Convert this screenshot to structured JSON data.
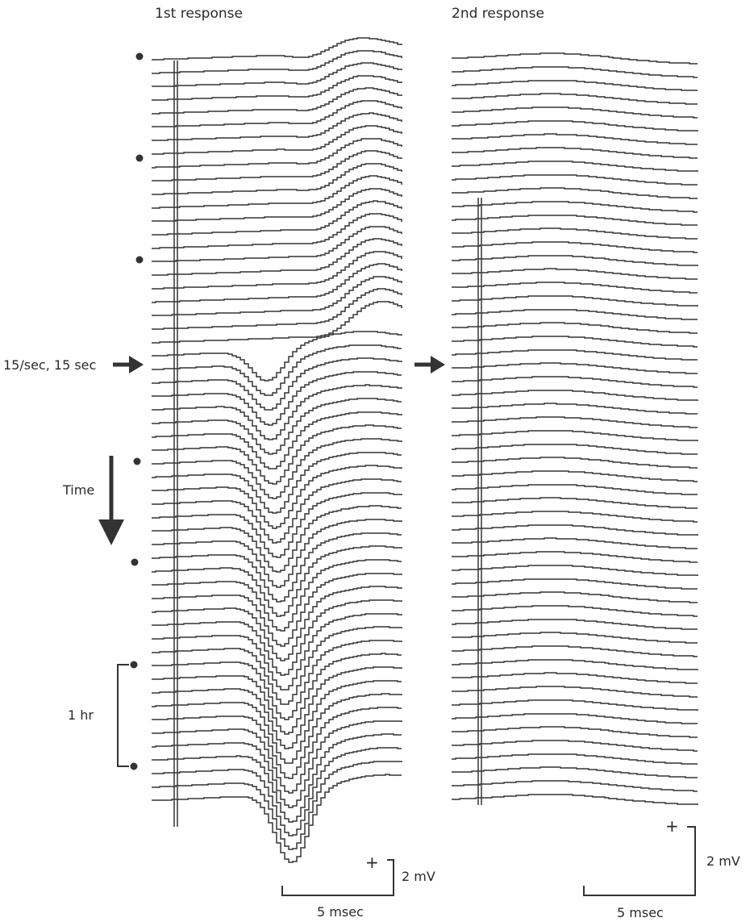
{
  "panels": {
    "first": {
      "title": "1st response",
      "trace_count": 56,
      "response_amplitude": "large"
    },
    "second": {
      "title": "2nd response",
      "trace_count": 56,
      "response_amplitude": "small"
    }
  },
  "annotations": {
    "stimulus_label": "15/sec, 15 sec",
    "time_label": "Time",
    "duration_label": "1 hr",
    "plus_sign": "+"
  },
  "scale_bars": {
    "first": {
      "voltage": "2 mV",
      "time": "5 msec"
    },
    "second": {
      "voltage": "2 mV",
      "time": "5 msec"
    }
  },
  "colors": {
    "ink": "#333333",
    "background": "#ffffff"
  }
}
